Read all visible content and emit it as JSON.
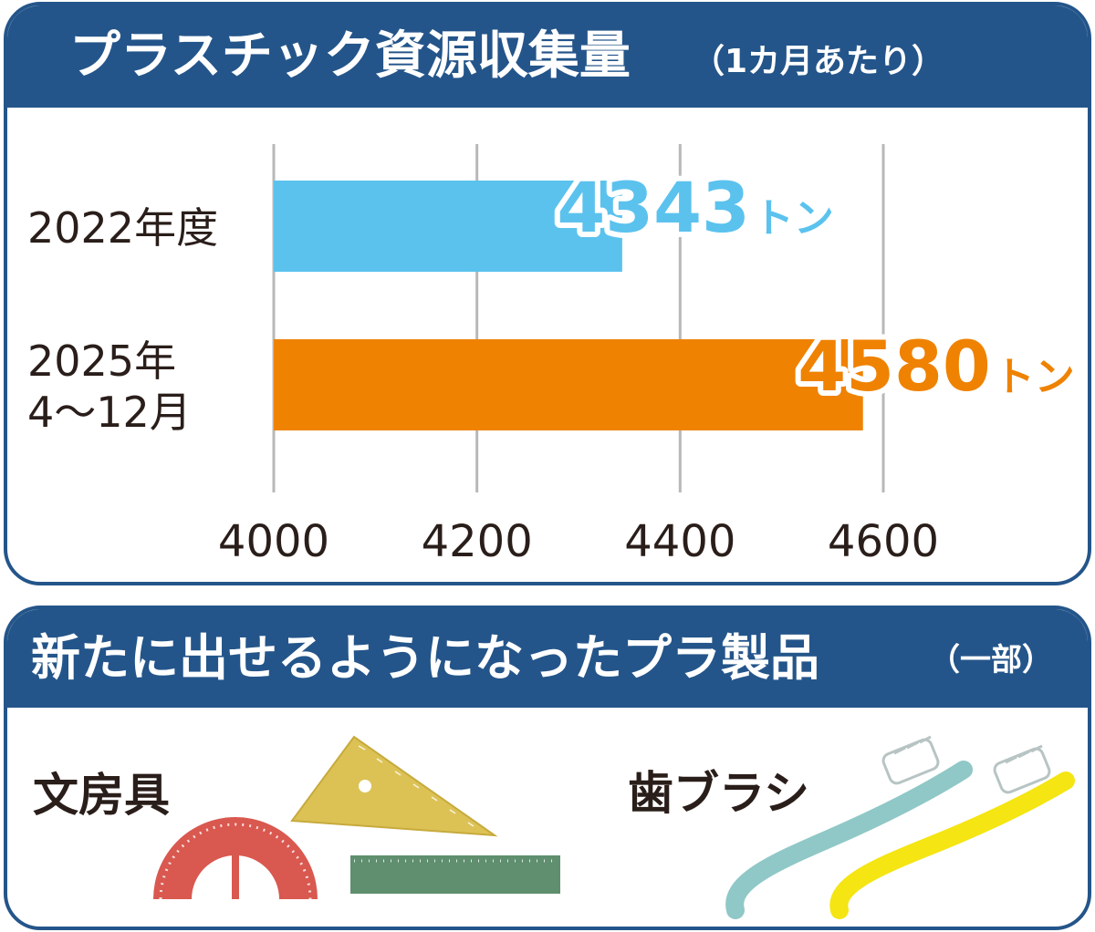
{
  "chart_data": {
    "type": "bar",
    "orientation": "horizontal",
    "title": "プラスチック資源収集量",
    "subtitle": "（1カ月あたり）",
    "categories": [
      [
        "2022年度"
      ],
      [
        "2025年",
        "4〜12月"
      ]
    ],
    "values": [
      4343,
      4580
    ],
    "value_labels": [
      "4343",
      "4580"
    ],
    "unit": "トン",
    "xlim": [
      4000,
      4600
    ],
    "xticks": [
      "4000",
      "4200",
      "4400",
      "4600"
    ],
    "grid": true,
    "colors": [
      "#5bc2ee",
      "#ef8200"
    ]
  },
  "products": {
    "title": "新たに出せるようになったプラ製品",
    "subtitle": "（一部）",
    "items": [
      {
        "label": "文房具",
        "icons": [
          "protractor-icon",
          "triangle-ruler-icon",
          "ruler-icon"
        ]
      },
      {
        "label": "歯ブラシ",
        "icons": [
          "toothbrush-icon",
          "toothbrush-icon"
        ]
      }
    ]
  },
  "colors": {
    "frame": "#24558a",
    "text": "#2a1e1a",
    "grid": "#b8b8b8"
  }
}
